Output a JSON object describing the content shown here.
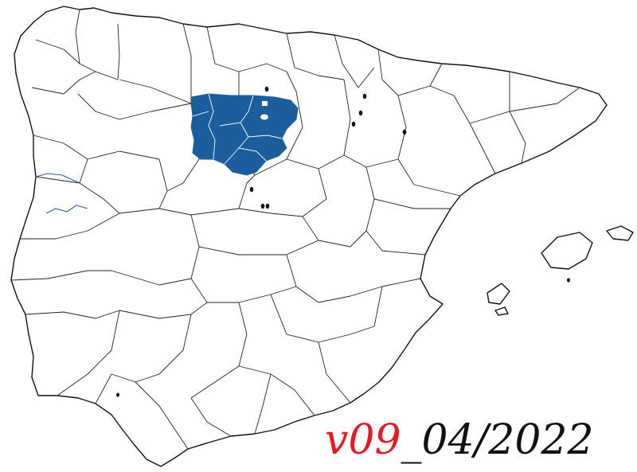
{
  "map": {
    "colors": {
      "range": "#1a5e9e",
      "land": "#ffffff",
      "border": "#222222",
      "river": "#2a5fa0",
      "record_dot": "#111111"
    },
    "records_count": 10
  },
  "version_label": {
    "version": "v09",
    "date": "_04/2022",
    "colors": {
      "version": "#e31b23",
      "date": "#111111"
    }
  }
}
